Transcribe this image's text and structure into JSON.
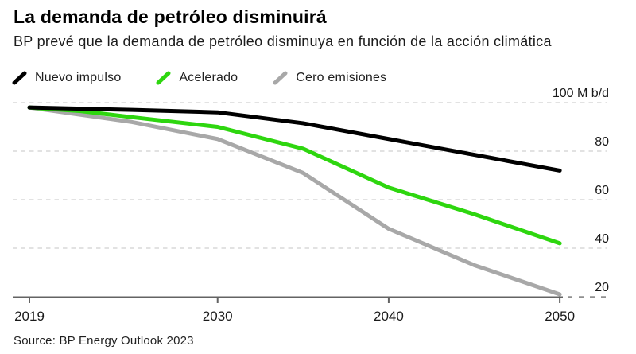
{
  "header": {
    "title": "La demanda de petróleo disminuirá",
    "subtitle": "BP prevé que la demanda de petróleo disminuya en función de la acción climática"
  },
  "source": "Source: BP Energy Outlook 2023",
  "chart_data": {
    "type": "line",
    "title": "La demanda de petróleo disminuirá",
    "subtitle": "BP prevé que la demanda de petróleo disminuya en función de la acción climática",
    "unit_label": "100 M b/d",
    "x": [
      2019,
      2022,
      2025,
      2030,
      2035,
      2040,
      2045,
      2050
    ],
    "series": [
      {
        "name": "Nuevo impulso",
        "color": "#000000",
        "values": [
          98,
          97.5,
          97,
          96,
          91.5,
          85,
          78.5,
          72
        ]
      },
      {
        "name": "Acelerado",
        "color": "#2ed60f",
        "values": [
          98,
          96.5,
          94,
          90,
          81,
          65,
          54,
          42
        ]
      },
      {
        "name": "Cero emisiones",
        "color": "#a8a8a8",
        "values": [
          98,
          95,
          92,
          85,
          71,
          48,
          33,
          21
        ]
      }
    ],
    "xticks": [
      {
        "value": 2019,
        "label": "2019"
      },
      {
        "value": 2030,
        "label": "2030"
      },
      {
        "value": 2040,
        "label": "2040"
      },
      {
        "value": 2050,
        "label": "2050"
      }
    ],
    "yticks": [
      {
        "value": 100,
        "label": "100 M b/d"
      },
      {
        "value": 80,
        "label": "80"
      },
      {
        "value": 60,
        "label": "60"
      },
      {
        "value": 40,
        "label": "40"
      },
      {
        "value": 20,
        "label": "20"
      }
    ],
    "xlim": [
      2019,
      2050
    ],
    "ylim": [
      20,
      100
    ],
    "grid": "dashed-horizontal",
    "legend_position": "top-left",
    "colors": {
      "gridline": "#d9d9d9",
      "axis": "#636363",
      "axis_dash_extension": "#8f8f8f",
      "tick_label": "#1a1a1a"
    }
  }
}
